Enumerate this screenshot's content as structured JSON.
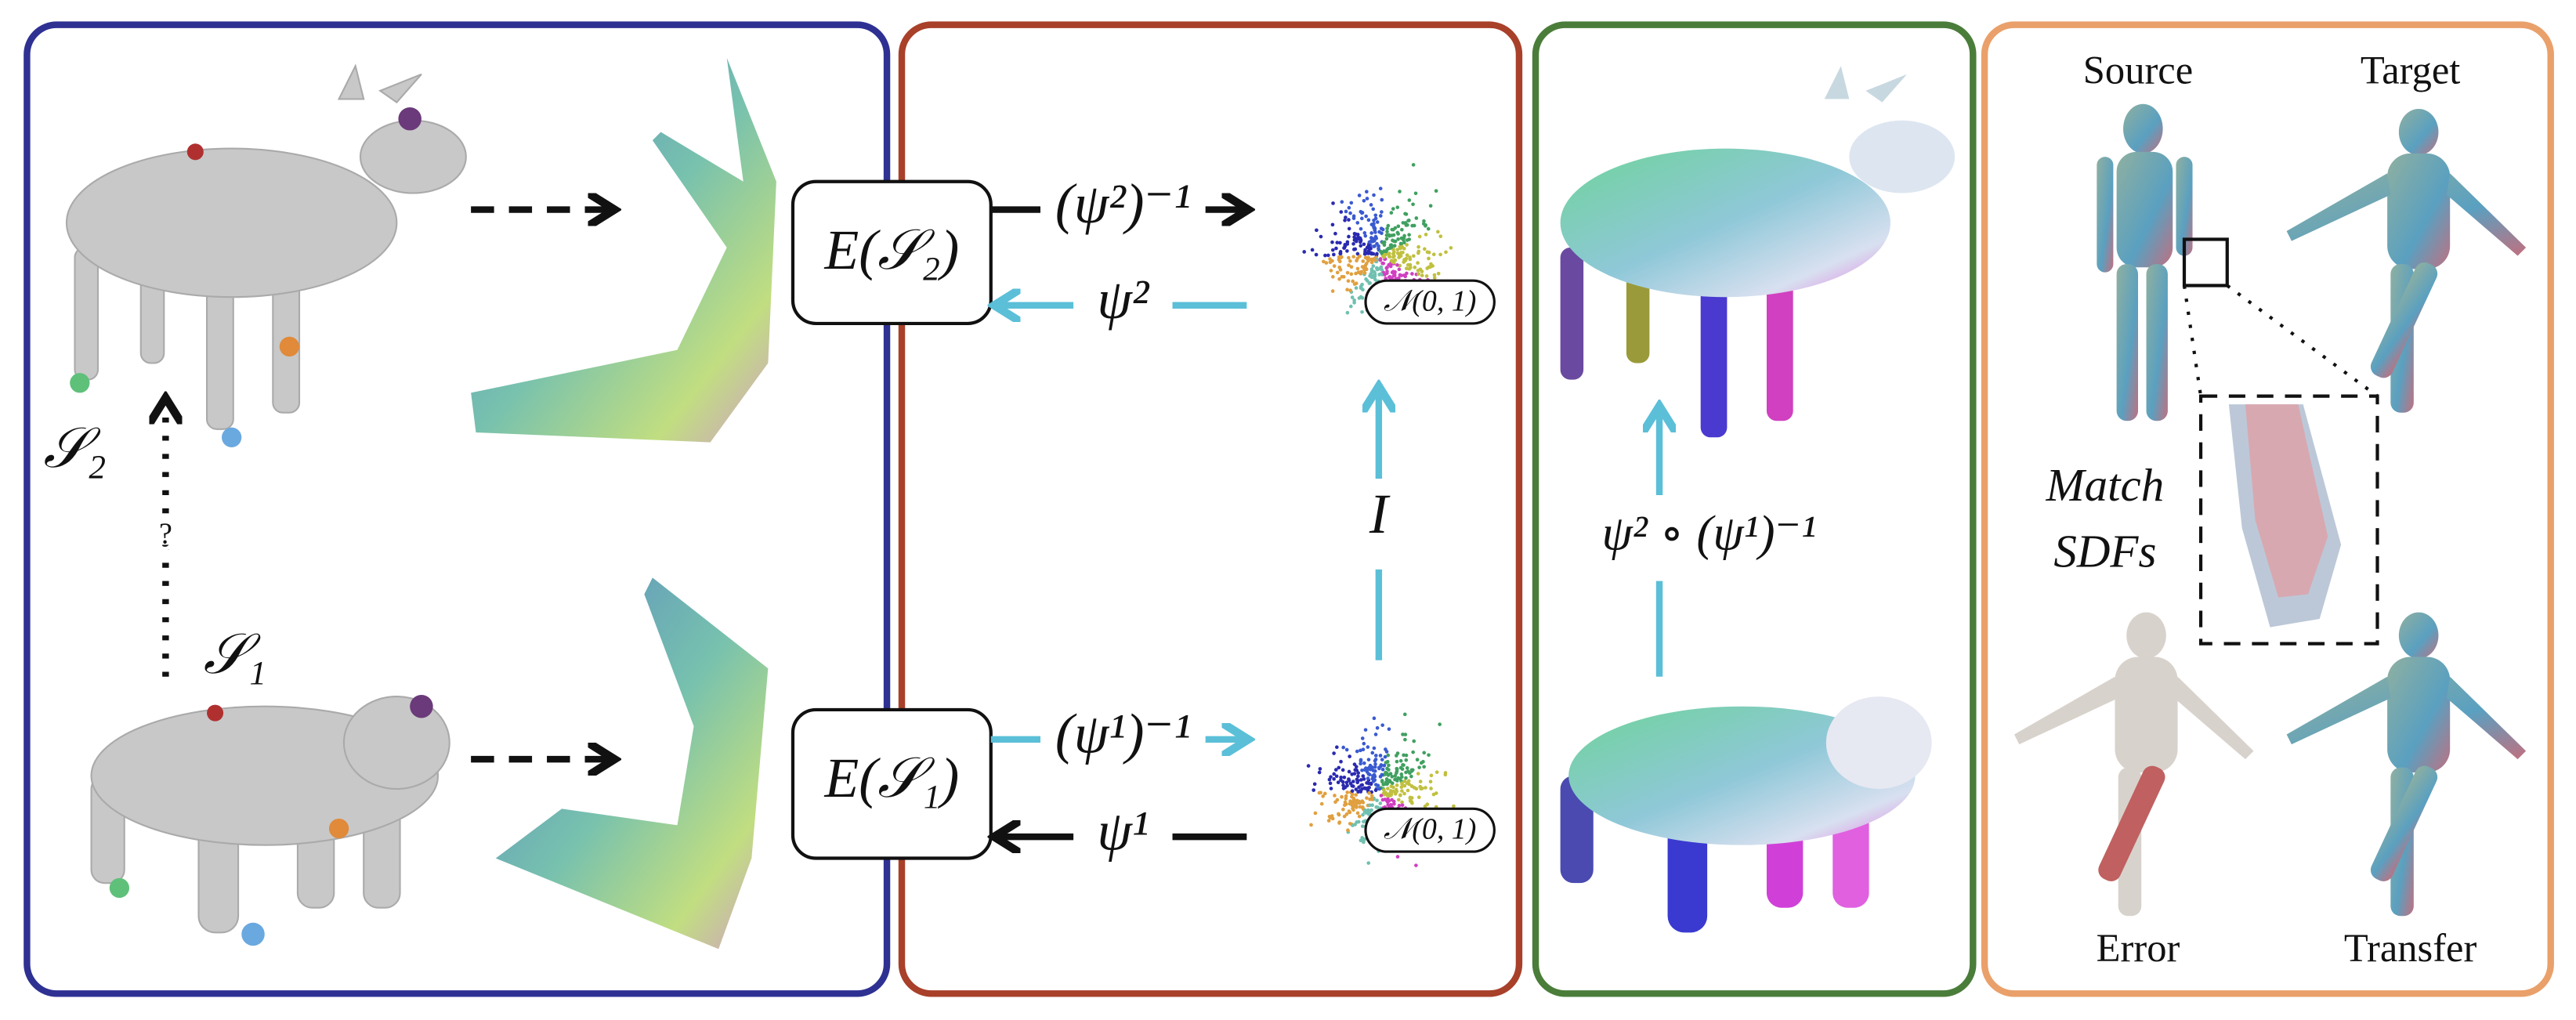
{
  "shapes": {
    "s2_label": "𝒮₂",
    "s1_label": "𝒮₁",
    "question": "?"
  },
  "encoders": [
    "E(𝒮₂)",
    "E(𝒮₁)"
  ],
  "maps": {
    "psi2_inv": "(ψ²)⁻¹",
    "psi2": "ψ²",
    "psi1_inv": "(ψ¹)⁻¹",
    "psi1": "ψ¹",
    "identity": "I"
  },
  "latent_labels": [
    "𝒩(0, 1)",
    "𝒩(0, 1)"
  ],
  "composition": "ψ² ∘ (ψ¹)⁻¹",
  "transfer": {
    "source": "Source",
    "target": "Target",
    "match": "Match",
    "sdfs": "SDFs",
    "error": "Error",
    "transfer": "Transfer"
  }
}
